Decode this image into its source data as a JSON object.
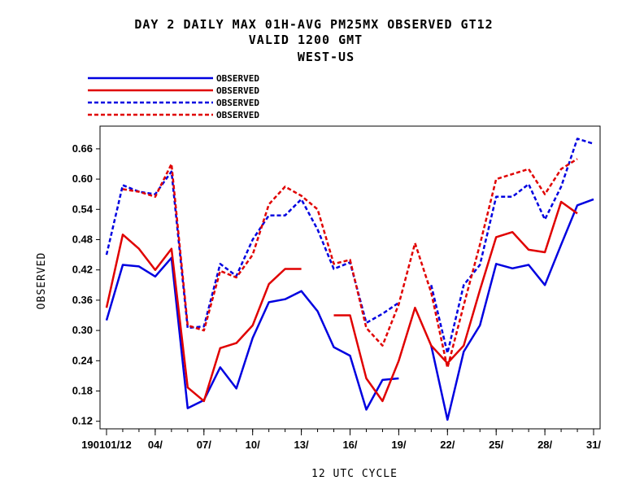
{
  "chart_data": {
    "type": "line",
    "title_lines": [
      "DAY 2 DAILY MAX   01H-AVG PM25MX OBSERVED GT12",
      "VALID 1200 GMT",
      "WEST-US"
    ],
    "xlabel": "12 UTC CYCLE",
    "ylabel": "OBSERVED",
    "x_ticks": [
      {
        "day": 1,
        "label": "190101/12"
      },
      {
        "day": 4,
        "label": "04/"
      },
      {
        "day": 7,
        "label": "07/"
      },
      {
        "day": 10,
        "label": "10/"
      },
      {
        "day": 13,
        "label": "13/"
      },
      {
        "day": 16,
        "label": "16/"
      },
      {
        "day": 19,
        "label": "19/"
      },
      {
        "day": 22,
        "label": "22/"
      },
      {
        "day": 25,
        "label": "25/"
      },
      {
        "day": 28,
        "label": "28/"
      },
      {
        "day": 31,
        "label": "31/"
      }
    ],
    "y_ticks": [
      0.12,
      0.18,
      0.24,
      0.3,
      0.36,
      0.42,
      0.48,
      0.54,
      0.6,
      0.66
    ],
    "xlim": [
      0.6,
      31.4
    ],
    "ylim": [
      0.105,
      0.705
    ],
    "x": [
      1,
      2,
      3,
      4,
      5,
      6,
      7,
      8,
      9,
      10,
      11,
      12,
      13,
      14,
      15,
      16,
      17,
      18,
      19,
      20,
      21,
      22,
      23,
      24,
      25,
      26,
      27,
      28,
      29,
      30,
      31
    ],
    "legend_position": "top-left",
    "series": [
      {
        "name": "OBSERVED",
        "color": "#0000e0",
        "dash": "solid",
        "values": [
          0.32,
          0.43,
          0.427,
          0.407,
          0.444,
          0.146,
          0.162,
          0.227,
          0.185,
          0.285,
          0.356,
          0.362,
          0.378,
          0.338,
          0.267,
          0.25,
          0.143,
          0.202,
          0.205,
          null,
          0.27,
          0.123,
          0.258,
          0.31,
          0.432,
          0.423,
          0.43,
          0.39,
          0.47,
          0.548,
          0.56
        ]
      },
      {
        "name": "OBSERVED",
        "color": "#e00000",
        "dash": "solid",
        "values": [
          0.345,
          0.49,
          0.462,
          0.42,
          0.462,
          0.187,
          0.16,
          0.265,
          0.275,
          0.31,
          0.392,
          0.422,
          0.422,
          null,
          0.33,
          0.33,
          0.205,
          0.16,
          0.24,
          0.345,
          0.27,
          0.235,
          0.27,
          0.38,
          0.485,
          0.495,
          0.46,
          0.455,
          0.555,
          0.532,
          null
        ]
      },
      {
        "name": "OBSERVED",
        "color": "#0000e0",
        "dash": "dashed",
        "values": [
          0.45,
          0.588,
          0.575,
          0.57,
          0.615,
          0.305,
          0.308,
          0.432,
          0.408,
          0.48,
          0.528,
          0.528,
          0.56,
          0.5,
          0.422,
          0.435,
          0.315,
          0.333,
          0.355,
          null,
          0.39,
          0.255,
          0.39,
          0.43,
          0.565,
          0.565,
          0.59,
          0.52,
          0.585,
          0.68,
          0.67
        ]
      },
      {
        "name": "OBSERVED",
        "color": "#e00000",
        "dash": "dashed",
        "values": [
          null,
          0.58,
          0.575,
          0.565,
          0.63,
          0.31,
          0.3,
          0.418,
          0.405,
          0.45,
          0.55,
          0.585,
          0.567,
          0.54,
          0.432,
          0.44,
          0.305,
          0.27,
          0.352,
          0.473,
          0.375,
          0.226,
          0.35,
          0.47,
          0.6,
          0.61,
          0.62,
          0.57,
          0.62,
          0.64,
          null
        ]
      }
    ]
  }
}
